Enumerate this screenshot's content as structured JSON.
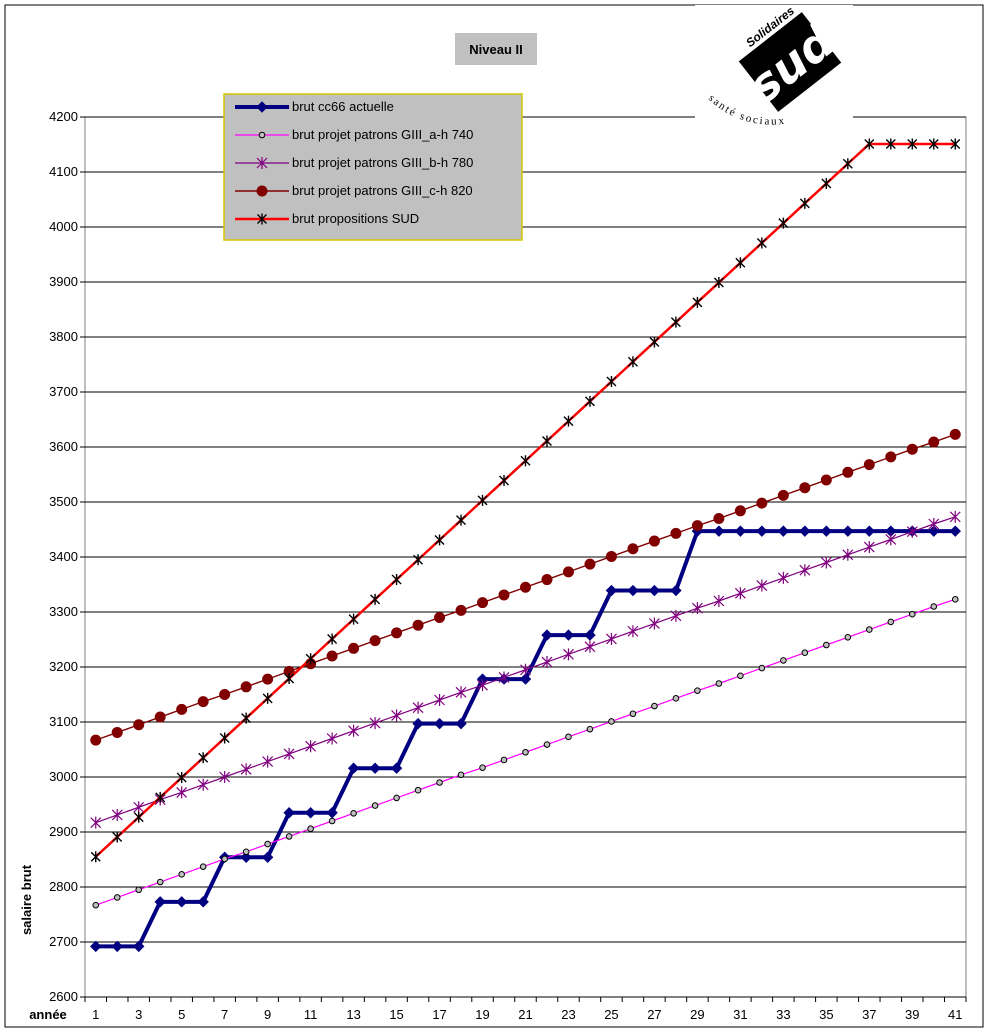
{
  "chart_data": {
    "type": "line",
    "title": "Niveau II",
    "xlabel": "année",
    "ylabel": "salaire brut",
    "ylim": [
      2600,
      4200
    ],
    "yticks": [
      2600,
      2700,
      2800,
      2900,
      3000,
      3100,
      3200,
      3300,
      3400,
      3500,
      3600,
      3700,
      3800,
      3900,
      4000,
      4100,
      4200
    ],
    "x": [
      1,
      2,
      3,
      4,
      5,
      6,
      7,
      8,
      9,
      10,
      11,
      12,
      13,
      14,
      15,
      16,
      17,
      18,
      19,
      20,
      21,
      22,
      23,
      24,
      25,
      26,
      27,
      28,
      29,
      30,
      31,
      32,
      33,
      34,
      35,
      36,
      37,
      38,
      39,
      40,
      41
    ],
    "xtick_labels": [
      1,
      3,
      5,
      7,
      9,
      11,
      13,
      15,
      17,
      19,
      21,
      23,
      25,
      27,
      29,
      31,
      33,
      35,
      37,
      39,
      41
    ],
    "grid": true,
    "legend_position": "top-left",
    "series": [
      {
        "name": "brut cc66 actuelle",
        "color": "#000080",
        "marker": "diamond",
        "values": [
          2692,
          2692,
          2692,
          2773,
          2773,
          2773,
          2854,
          2854,
          2854,
          2935,
          2935,
          2935,
          3016,
          3016,
          3016,
          3097,
          3097,
          3097,
          3178,
          3178,
          3178,
          3258,
          3258,
          3258,
          3339,
          3339,
          3339,
          3339,
          3447,
          3447,
          3447,
          3447,
          3447,
          3447,
          3447,
          3447,
          3447,
          3447,
          3447,
          3447,
          3447
        ]
      },
      {
        "name": "brut projet patrons GIII_a-h 740",
        "color": "#ff00ff",
        "marker": "circle-small",
        "values": [
          2767,
          2781,
          2795,
          2809,
          2823,
          2837,
          2851,
          2864,
          2878,
          2892,
          2906,
          2920,
          2934,
          2948,
          2962,
          2976,
          2990,
          3004,
          3017,
          3031,
          3045,
          3059,
          3073,
          3087,
          3101,
          3115,
          3129,
          3143,
          3157,
          3170,
          3184,
          3198,
          3212,
          3226,
          3240,
          3254,
          3268,
          3282,
          3296,
          3310,
          3323
        ]
      },
      {
        "name": "brut projet patrons GIII_b-h 780",
        "color": "#800080",
        "marker": "star",
        "values": [
          2917,
          2931,
          2945,
          2959,
          2972,
          2986,
          3000,
          3014,
          3028,
          3042,
          3056,
          3070,
          3084,
          3098,
          3112,
          3126,
          3140,
          3154,
          3167,
          3181,
          3195,
          3209,
          3223,
          3237,
          3251,
          3265,
          3279,
          3293,
          3307,
          3320,
          3334,
          3348,
          3362,
          3376,
          3390,
          3404,
          3418,
          3432,
          3446,
          3460,
          3473
        ]
      },
      {
        "name": "brut projet patrons GIII_c-h 820",
        "color": "#800000",
        "marker": "circle",
        "values": [
          3067,
          3081,
          3095,
          3109,
          3123,
          3137,
          3150,
          3164,
          3178,
          3192,
          3206,
          3220,
          3234,
          3248,
          3262,
          3276,
          3290,
          3303,
          3317,
          3331,
          3345,
          3359,
          3373,
          3387,
          3401,
          3415,
          3429,
          3443,
          3457,
          3470,
          3484,
          3498,
          3512,
          3526,
          3540,
          3554,
          3568,
          3582,
          3596,
          3609,
          3623
        ]
      },
      {
        "name": "brut propositions SUD",
        "color": "#ff0000",
        "marker": "asterisk",
        "values": [
          2855,
          2891,
          2927,
          2963,
          2999,
          3035,
          3071,
          3107,
          3143,
          3179,
          3215,
          3251,
          3287,
          3323,
          3359,
          3395,
          3431,
          3467,
          3503,
          3539,
          3575,
          3611,
          3647,
          3683,
          3719,
          3755,
          3791,
          3827,
          3863,
          3899,
          3935,
          3971,
          4007,
          4043,
          4079,
          4115,
          4151,
          4151,
          4151,
          4151,
          4151
        ]
      }
    ]
  },
  "logo": {
    "brand": "sud",
    "banner": "Solidaires",
    "ring_text": "santé sociaux"
  }
}
